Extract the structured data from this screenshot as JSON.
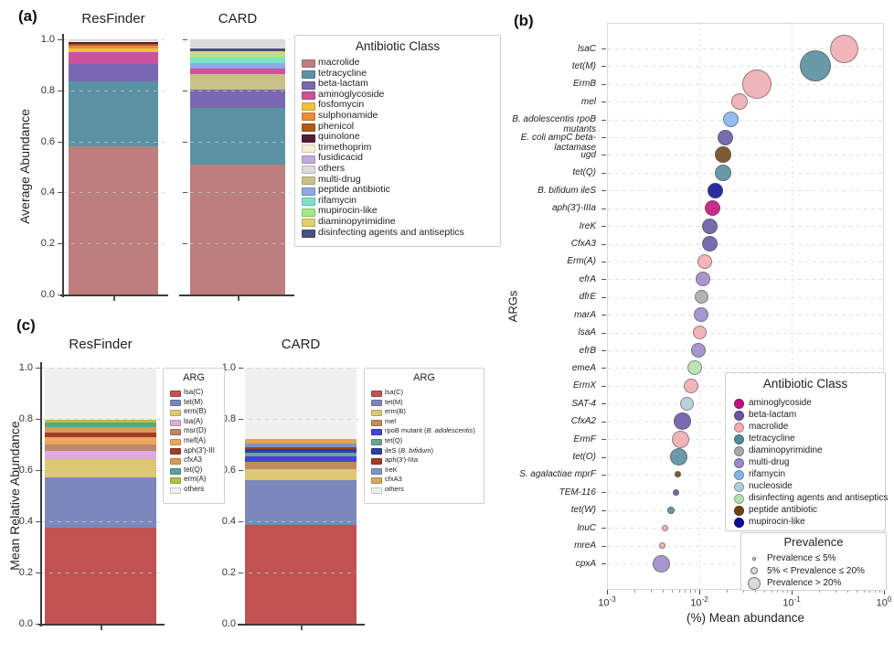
{
  "chart_data": [
    {
      "id": "a",
      "type": "bar",
      "panel_label": "(a)",
      "ylabel": "Average Abundance",
      "ylim": [
        0,
        1.0
      ],
      "yticks": [
        "1.0",
        "0.8",
        "0.6",
        "0.4",
        "0.2",
        "0.0"
      ],
      "grid": "dashed horizontal at each ytick",
      "legend_title": "Antibiotic Class",
      "legend_position": "right",
      "classes": [
        {
          "label": "macrolide",
          "color": "#bd7e7e"
        },
        {
          "label": "tetracycline",
          "color": "#5b92a3"
        },
        {
          "label": "beta-lactam",
          "color": "#7968b1"
        },
        {
          "label": "aminoglycoside",
          "color": "#c8549b"
        },
        {
          "label": "fosfomycin",
          "color": "#eec23f"
        },
        {
          "label": "sulphonamide",
          "color": "#e78d3c"
        },
        {
          "label": "phenicol",
          "color": "#b05c15"
        },
        {
          "label": "quinolone",
          "color": "#571d37"
        },
        {
          "label": "trimethoprim",
          "color": "#faeed0"
        },
        {
          "label": "fusidicacid",
          "color": "#c1abd9"
        },
        {
          "label": "others",
          "color": "#dcdcdc"
        },
        {
          "label": "multi-drug",
          "color": "#c9c187"
        },
        {
          "label": "peptide antibiotic",
          "color": "#8fa8e6"
        },
        {
          "label": "rifamycin",
          "color": "#7ce3c8"
        },
        {
          "label": "mupirocin-like",
          "color": "#a4e985"
        },
        {
          "label": "diaminopyrimidine",
          "color": "#e0d26b"
        },
        {
          "label": "disinfecting agents and antiseptics",
          "color": "#475379"
        }
      ],
      "bars": [
        {
          "title": "ResFinder",
          "segments": [
            {
              "class": "macrolide",
              "value": 0.58
            },
            {
              "class": "tetracycline",
              "value": 0.255
            },
            {
              "class": "beta-lactam",
              "value": 0.068
            },
            {
              "class": "aminoglycoside",
              "value": 0.048
            },
            {
              "class": "fosfomycin",
              "value": 0.014
            },
            {
              "class": "sulphonamide",
              "value": 0.011
            },
            {
              "class": "phenicol",
              "value": 0.007
            },
            {
              "class": "quinolone",
              "value": 0.006
            },
            {
              "class": "trimethoprim",
              "value": 0.003
            },
            {
              "class": "others",
              "value": 0.008
            }
          ]
        },
        {
          "title": "CARD",
          "segments": [
            {
              "class": "macrolide",
              "value": 0.51
            },
            {
              "class": "tetracycline",
              "value": 0.222
            },
            {
              "class": "beta-lactam",
              "value": 0.072
            },
            {
              "class": "multi-drug",
              "value": 0.06
            },
            {
              "class": "aminoglycoside",
              "value": 0.023
            },
            {
              "class": "peptide antibiotic",
              "value": 0.021
            },
            {
              "class": "rifamycin",
              "value": 0.019
            },
            {
              "class": "mupirocin-like",
              "value": 0.017
            },
            {
              "class": "diaminopyrimidine",
              "value": 0.009
            },
            {
              "class": "disinfecting agents and antiseptics",
              "value": 0.012
            },
            {
              "class": "others",
              "value": 0.035
            }
          ]
        }
      ]
    },
    {
      "id": "b",
      "type": "scatter",
      "panel_label": "(b)",
      "xlabel": "(%) Mean abundance",
      "ylabel": "ARGs",
      "xscale": "log",
      "xlim": [
        0.001,
        1
      ],
      "xticks": [
        {
          "base": "10",
          "exp": "-3"
        },
        {
          "base": "10",
          "exp": "-2"
        },
        {
          "base": "10",
          "exp": "-1"
        },
        {
          "base": "10",
          "exp": "0"
        }
      ],
      "legend_title": "Antibiotic Class",
      "classes": [
        {
          "label": "aminoglycoside",
          "color": "#c2117e"
        },
        {
          "label": "beta-lactam",
          "color": "#6658a5"
        },
        {
          "label": "macrolide",
          "color": "#f0acb0"
        },
        {
          "label": "tetracycline",
          "color": "#568b9d"
        },
        {
          "label": "diaminopyrimidine",
          "color": "#aaaaaa"
        },
        {
          "label": "multi-drug",
          "color": "#9c89c9"
        },
        {
          "label": "rifamycin",
          "color": "#85b5e8"
        },
        {
          "label": "nucleoside",
          "color": "#b3ccd5"
        },
        {
          "label": "disinfecting agents and antiseptics",
          "color": "#b5dfad"
        },
        {
          "label": "peptide antibiotic",
          "color": "#6b4617"
        },
        {
          "label": "mupirocin-like",
          "color": "#0c0e97"
        }
      ],
      "size_legend": {
        "title": "Prevalence",
        "items": [
          {
            "label": "Prevalence ≤ 5%",
            "dia": 4
          },
          {
            "label": "5% < Prevalence ≤ 20%",
            "dia": 8
          },
          {
            "label": "Prevalence > 20%",
            "dia": 14
          }
        ]
      },
      "points": [
        {
          "label": "lsaC",
          "class": "macrolide",
          "x": 0.37,
          "prevalence": "Prevalence > 20%",
          "r": 15.5
        },
        {
          "label": "tet(M)",
          "class": "tetracycline",
          "x": 0.18,
          "prevalence": "Prevalence > 20%",
          "r": 17
        },
        {
          "label": "ErmB",
          "class": "macrolide",
          "x": 0.042,
          "prevalence": "Prevalence > 20%",
          "r": 16
        },
        {
          "label": "mel",
          "class": "macrolide",
          "x": 0.027,
          "prevalence": "5% < Prevalence ≤ 20%",
          "r": 9
        },
        {
          "label": "B. adolescentis rpoB mutants",
          "class": "rifamycin",
          "x": 0.022,
          "prevalence": "5% < Prevalence ≤ 20%",
          "r": 8.5
        },
        {
          "label": "E. coli ampC beta-lactamase",
          "class": "beta-lactam",
          "x": 0.019,
          "prevalence": "5% < Prevalence ≤ 20%",
          "r": 8.5
        },
        {
          "label": "ugd",
          "class": "peptide antibiotic",
          "x": 0.018,
          "prevalence": "5% < Prevalence ≤ 20%",
          "r": 9
        },
        {
          "label": "tet(Q)",
          "class": "tetracycline",
          "x": 0.018,
          "prevalence": "5% < Prevalence ≤ 20%",
          "r": 9
        },
        {
          "label": "B. bifidum ileS",
          "class": "mupirocin-like",
          "x": 0.015,
          "prevalence": "5% < Prevalence ≤ 20%",
          "r": 8.5
        },
        {
          "label": "aph(3')-IIIa",
          "class": "aminoglycoside",
          "x": 0.014,
          "prevalence": "5% < Prevalence ≤ 20%",
          "r": 8.5
        },
        {
          "label": "IreK",
          "class": "beta-lactam",
          "x": 0.013,
          "prevalence": "5% < Prevalence ≤ 20%",
          "r": 8.5
        },
        {
          "label": "CfxA3",
          "class": "beta-lactam",
          "x": 0.013,
          "prevalence": "5% < Prevalence ≤ 20%",
          "r": 8.5
        },
        {
          "label": "Erm(A)",
          "class": "macrolide",
          "x": 0.0115,
          "prevalence": "5% < Prevalence ≤ 20%",
          "r": 8
        },
        {
          "label": "efrA",
          "class": "multi-drug",
          "x": 0.011,
          "prevalence": "5% < Prevalence ≤ 20%",
          "r": 8
        },
        {
          "label": "dfrE",
          "class": "diaminopyrimidine",
          "x": 0.0105,
          "prevalence": "5% < Prevalence ≤ 20%",
          "r": 7.5
        },
        {
          "label": "marA",
          "class": "multi-drug",
          "x": 0.0105,
          "prevalence": "5% < Prevalence ≤ 20%",
          "r": 8
        },
        {
          "label": "lsaA",
          "class": "macrolide",
          "x": 0.01,
          "prevalence": "5% < Prevalence ≤ 20%",
          "r": 7.5
        },
        {
          "label": "efrB",
          "class": "multi-drug",
          "x": 0.0098,
          "prevalence": "5% < Prevalence ≤ 20%",
          "r": 8
        },
        {
          "label": "emeA",
          "class": "disinfecting agents and antiseptics",
          "x": 0.009,
          "prevalence": "5% < Prevalence ≤ 20%",
          "r": 8
        },
        {
          "label": "ErmX",
          "class": "macrolide",
          "x": 0.0082,
          "prevalence": "5% < Prevalence ≤ 20%",
          "r": 8
        },
        {
          "label": "SAT-4",
          "class": "nucleoside",
          "x": 0.0073,
          "prevalence": "5% < Prevalence ≤ 20%",
          "r": 7.5
        },
        {
          "label": "CfxA2",
          "class": "beta-lactam",
          "x": 0.0066,
          "prevalence": "5% < Prevalence ≤ 20%",
          "r": 9.5
        },
        {
          "label": "ErmF",
          "class": "macrolide",
          "x": 0.0062,
          "prevalence": "5% < Prevalence ≤ 20%",
          "r": 9.5
        },
        {
          "label": "tet(O)",
          "class": "tetracycline",
          "x": 0.006,
          "prevalence": "5% < Prevalence ≤ 20%",
          "r": 9.5
        },
        {
          "label": "S. agalactiae mprF",
          "class": "peptide antibiotic",
          "x": 0.0058,
          "prevalence": "Prevalence ≤ 5%",
          "r": 3.5
        },
        {
          "label": "TEM-116",
          "class": "beta-lactam",
          "x": 0.0056,
          "prevalence": "Prevalence ≤ 5%",
          "r": 3.5
        },
        {
          "label": "tet(W)",
          "class": "tetracycline",
          "x": 0.0049,
          "prevalence": "Prevalence ≤ 5%",
          "r": 4
        },
        {
          "label": "lnuC",
          "class": "macrolide",
          "x": 0.0043,
          "prevalence": "Prevalence ≤ 5%",
          "r": 3.5
        },
        {
          "label": "mreA",
          "class": "macrolide",
          "x": 0.004,
          "prevalence": "Prevalence ≤ 5%",
          "r": 3.5
        },
        {
          "label": "cpxA",
          "class": "multi-drug",
          "x": 0.0039,
          "prevalence": "5% < Prevalence ≤ 20%",
          "r": 9.5
        }
      ]
    },
    {
      "id": "c",
      "type": "bar",
      "panel_label": "(c)",
      "ylabel": "Mean Relative Abundance",
      "ylim": [
        0,
        1.0
      ],
      "yticks": [
        "1.0",
        "0.8",
        "0.6",
        "0.4",
        "0.2",
        "0.0"
      ],
      "bars": [
        {
          "title": "ResFinder",
          "legend_title": "ARG",
          "classes": [
            {
              "label": "lsa(C)",
              "color": "#c05351"
            },
            {
              "label": "tet(M)",
              "color": "#7d87bb"
            },
            {
              "label": "erm(B)",
              "color": "#ddc873"
            },
            {
              "label": "lsa(A)",
              "color": "#dfaade"
            },
            {
              "label": "msr(D)",
              "color": "#bd8668"
            },
            {
              "label": "mef(A)",
              "color": "#eda55f"
            },
            {
              "label": "aph(3')-III",
              "color": "#a03d27"
            },
            {
              "label": "cfxA3",
              "color": "#d69c57"
            },
            {
              "label": "tet(Q)",
              "color": "#61a092"
            },
            {
              "label": "erm(A)",
              "color": "#b8c13d"
            },
            {
              "label": "others",
              "color": "#f0f0f0"
            }
          ],
          "segments": [
            {
              "class": "lsa(C)",
              "value": 0.375
            },
            {
              "class": "tet(M)",
              "value": 0.198
            },
            {
              "class": "erm(B)",
              "value": 0.068
            },
            {
              "class": "lsa(A)",
              "value": 0.034
            },
            {
              "class": "msr(D)",
              "value": 0.026
            },
            {
              "class": "mef(A)",
              "value": 0.026
            },
            {
              "class": "aph(3')-III",
              "value": 0.02
            },
            {
              "class": "cfxA3",
              "value": 0.02
            },
            {
              "class": "tet(Q)",
              "value": 0.018
            },
            {
              "class": "erm(A)",
              "value": 0.01
            },
            {
              "class": "others",
              "value": 0.205
            }
          ]
        },
        {
          "title": "CARD",
          "legend_title": "ARG",
          "classes": [
            {
              "label": "lsa(C)",
              "color": "#c05351"
            },
            {
              "label": "tet(M)",
              "color": "#7d87bb"
            },
            {
              "label": "erm(B)",
              "color": "#ddc873"
            },
            {
              "label": "mel",
              "color": "#c08b5e"
            },
            {
              "label": "rpoB mutant (B. adolescentis)",
              "color": "#4343dd"
            },
            {
              "label": "tet(Q)",
              "color": "#6aa596"
            },
            {
              "label": "ileS (B. bifidum)",
              "color": "#2e3f9f"
            },
            {
              "label": "aph(3')-IIIa",
              "color": "#a03d27"
            },
            {
              "label": "IreK",
              "color": "#8093c1"
            },
            {
              "label": "cfxA3",
              "color": "#d9a85f"
            },
            {
              "label": "others",
              "color": "#f0f0f0"
            }
          ],
          "segments": [
            {
              "class": "lsa(C)",
              "value": 0.385
            },
            {
              "class": "tet(M)",
              "value": 0.175
            },
            {
              "class": "erm(B)",
              "value": 0.045
            },
            {
              "class": "mel",
              "value": 0.028
            },
            {
              "class": "rpoB mutant (B. adolescentis)",
              "value": 0.021
            },
            {
              "class": "tet(Q)",
              "value": 0.014
            },
            {
              "class": "ileS (B. bifidum)",
              "value": 0.013
            },
            {
              "class": "aph(3')-IIIa",
              "value": 0.01
            },
            {
              "class": "IreK",
              "value": 0.014
            },
            {
              "class": "cfxA3",
              "value": 0.015
            },
            {
              "class": "others",
              "value": 0.28
            }
          ]
        }
      ]
    }
  ]
}
